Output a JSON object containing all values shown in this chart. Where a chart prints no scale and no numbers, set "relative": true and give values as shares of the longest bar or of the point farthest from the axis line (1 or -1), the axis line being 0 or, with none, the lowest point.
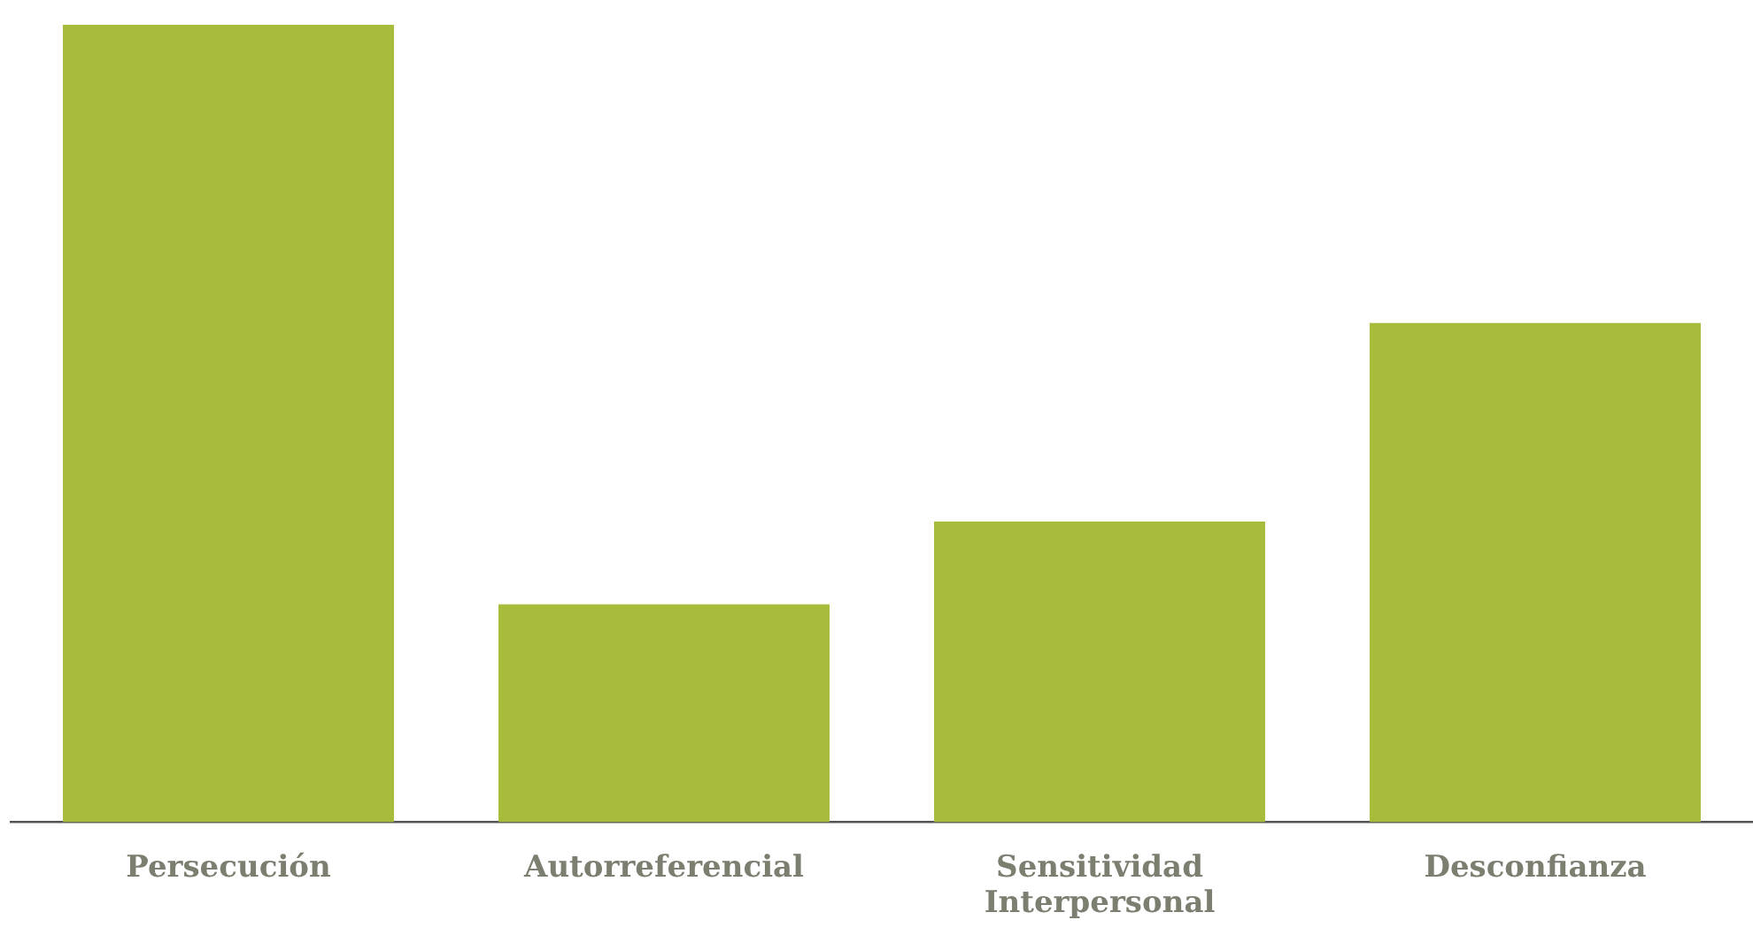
{
  "chart_data": {
    "type": "bar",
    "relative": true,
    "categories": [
      "Persecución",
      "Autorreferencial",
      "Sensitividad Interpersonal",
      "Desconfianza"
    ],
    "values": [
      1,
      0.273,
      0.377,
      0.626
    ],
    "color": "#a8bb3a",
    "legend": false
  }
}
